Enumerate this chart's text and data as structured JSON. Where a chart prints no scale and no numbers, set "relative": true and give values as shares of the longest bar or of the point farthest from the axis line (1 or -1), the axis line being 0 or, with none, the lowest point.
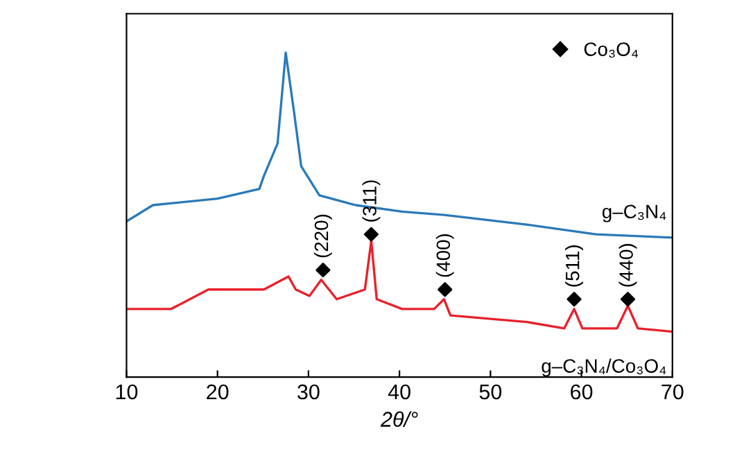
{
  "chart_data": {
    "type": "line",
    "relative": true,
    "xlabel": "2θ/°",
    "xlim": [
      10,
      70
    ],
    "xticks": [
      10,
      20,
      30,
      40,
      50,
      60,
      70
    ],
    "tick_labels": "x",
    "grid": false,
    "legend": "top right",
    "marker": "none",
    "line_style": "solid",
    "series": [
      {
        "name": "g–C₃N₄",
        "color": "#2a7ab8",
        "x": [
          10,
          12.9,
          20,
          24.6,
          25.1,
          26.6,
          27.5,
          28.4,
          29.2,
          31.2,
          35.2,
          40.3,
          44.9,
          54,
          61.6,
          70
        ],
        "values": [
          0.48,
          0.53,
          0.55,
          0.58,
          0.62,
          0.72,
          1.0,
          0.82,
          0.65,
          0.56,
          0.53,
          0.51,
          0.5,
          0.47,
          0.44,
          0.43
        ]
      },
      {
        "name": "g–C₃N₄/Co₃O₄",
        "color": "#e8202a",
        "x": [
          10,
          14.9,
          19,
          25.1,
          27.8,
          28.6,
          30.1,
          31.4,
          33.1,
          36.2,
          36.9,
          37.5,
          40.3,
          43.8,
          44.9,
          45.6,
          54,
          58.1,
          59.2,
          60.1,
          63.9,
          65.1,
          66.2,
          70
        ],
        "values": [
          0.21,
          0.21,
          0.27,
          0.27,
          0.31,
          0.27,
          0.25,
          0.3,
          0.24,
          0.27,
          0.42,
          0.24,
          0.21,
          0.21,
          0.24,
          0.19,
          0.17,
          0.15,
          0.21,
          0.15,
          0.15,
          0.22,
          0.15,
          0.14
        ]
      },
      {
        "name": "Co₃O₄",
        "type": "scatter",
        "marker": "diamond",
        "color": "#000000",
        "x": [
          31.6,
          36.9,
          45,
          59.2,
          65.1
        ],
        "values": [
          0.33,
          0.44,
          0.27,
          0.24,
          0.24
        ]
      }
    ],
    "annotations": [
      {
        "text": "(220)",
        "x": 31.6,
        "y": 0.33
      },
      {
        "text": "(311)",
        "x": 36.9,
        "y": 0.44
      },
      {
        "text": "(400)",
        "x": 45,
        "y": 0.27
      },
      {
        "text": "(511)",
        "x": 59.2,
        "y": 0.24
      },
      {
        "text": "(440)",
        "x": 65.1,
        "y": 0.24
      }
    ]
  }
}
